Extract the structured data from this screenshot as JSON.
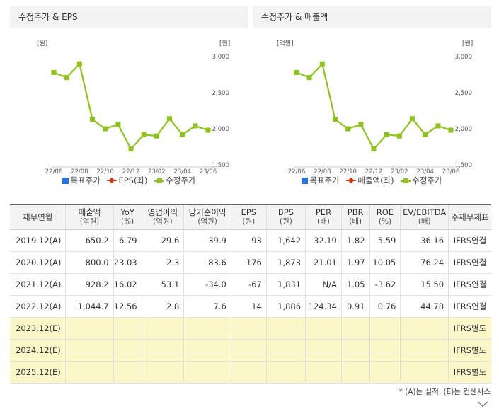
{
  "panels": [
    {
      "title": "수정주가 & EPS",
      "left_axis_unit": "[원]",
      "right_axis_unit": "[원]",
      "legend": [
        "목표주가",
        "EPS(좌)",
        "수정주가"
      ]
    },
    {
      "title": "수정주가 & 매출액",
      "left_axis_unit": "[억원]",
      "right_axis_unit": "[원]",
      "legend": [
        "목표주가",
        "매출액(좌)",
        "수정주가"
      ]
    }
  ],
  "chart_data": [
    {
      "type": "line",
      "x_tick_labels": [
        "22/06",
        "22/08",
        "22/10",
        "22/12",
        "23/02",
        "23/04",
        "23/06"
      ],
      "y_right_ticks": [
        "3,000",
        "2,500",
        "2,000",
        "1,500"
      ],
      "y_right_range": [
        1500,
        3000
      ],
      "series": [
        {
          "name": "수정주가",
          "color": "#8dc21f",
          "values": [
            2780,
            2710,
            2900,
            2130,
            2000,
            2060,
            1720,
            1920,
            1900,
            2140,
            1920,
            2040,
            1980
          ]
        }
      ]
    },
    {
      "type": "line",
      "x_tick_labels": [
        "22/06",
        "22/08",
        "22/10",
        "22/12",
        "23/02",
        "23/04",
        "23/06"
      ],
      "y_right_ticks": [
        "3,000",
        "2,500",
        "2,000",
        "1,500"
      ],
      "y_right_range": [
        1500,
        3000
      ],
      "series": [
        {
          "name": "수정주가",
          "color": "#8dc21f",
          "values": [
            2780,
            2710,
            2900,
            2130,
            2000,
            2060,
            1720,
            1920,
            1900,
            2140,
            1920,
            2040,
            1980
          ]
        }
      ]
    }
  ],
  "table": {
    "headers": [
      {
        "label": "재무연월",
        "sub": ""
      },
      {
        "label": "매출액",
        "sub": "(억원)"
      },
      {
        "label": "YoY",
        "sub": "(%)"
      },
      {
        "label": "영업이익",
        "sub": "(억원)"
      },
      {
        "label": "당기순이익",
        "sub": "(억원)"
      },
      {
        "label": "EPS",
        "sub": "(원)"
      },
      {
        "label": "BPS",
        "sub": "(원)"
      },
      {
        "label": "PER",
        "sub": "(배)"
      },
      {
        "label": "PBR",
        "sub": "(배)"
      },
      {
        "label": "ROE",
        "sub": "(%)"
      },
      {
        "label": "EV/EBITDA",
        "sub": "(배)"
      },
      {
        "label": "주재무제표",
        "sub": ""
      }
    ],
    "rows": [
      {
        "estimate": false,
        "cells": [
          "2019.12(A)",
          "650.2",
          "6.79",
          "29.6",
          "39.9",
          "93",
          "1,642",
          "32.19",
          "1.82",
          "5.59",
          "36.16",
          "IFRS연결"
        ]
      },
      {
        "estimate": false,
        "cells": [
          "2020.12(A)",
          "800.0",
          "23.03",
          "2.3",
          "83.6",
          "176",
          "1,873",
          "21.01",
          "1.97",
          "10.05",
          "76.24",
          "IFRS연결"
        ]
      },
      {
        "estimate": false,
        "cells": [
          "2021.12(A)",
          "928.2",
          "16.02",
          "53.1",
          "-34.0",
          "-67",
          "1,831",
          "N/A",
          "1.05",
          "-3.62",
          "15.50",
          "IFRS연결"
        ]
      },
      {
        "estimate": false,
        "cells": [
          "2022.12(A)",
          "1,044.7",
          "12.56",
          "2.8",
          "7.6",
          "14",
          "1,886",
          "124.34",
          "0.91",
          "0.76",
          "44.78",
          "IFRS연결"
        ]
      },
      {
        "estimate": true,
        "cells": [
          "2023.12(E)",
          "",
          "",
          "",
          "",
          "",
          "",
          "",
          "",
          "",
          "",
          "IFRS별도"
        ]
      },
      {
        "estimate": true,
        "cells": [
          "2024.12(E)",
          "",
          "",
          "",
          "",
          "",
          "",
          "",
          "",
          "",
          "",
          "IFRS별도"
        ]
      },
      {
        "estimate": true,
        "cells": [
          "2025.12(E)",
          "",
          "",
          "",
          "",
          "",
          "",
          "",
          "",
          "",
          "",
          "IFRS별도"
        ]
      }
    ]
  },
  "footnote": "* (A)는 실적, (E)는 컨센서스"
}
